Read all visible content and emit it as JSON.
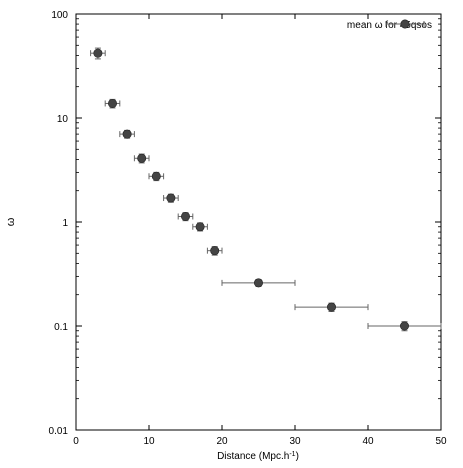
{
  "chart_data": {
    "type": "scatter",
    "title": "",
    "xlabel": "Distance (Mpc.h",
    "xlabel_sup": "-1",
    "xlabel_suffix": ")",
    "ylabel": "ω",
    "xlim": [
      0,
      50
    ],
    "ylim": [
      0.01,
      100
    ],
    "yscale": "log",
    "grid": false,
    "legend_position": "top-right",
    "x_ticks": [
      0,
      10,
      20,
      30,
      40,
      50
    ],
    "x_tick_labels": [
      "0",
      "10",
      "20",
      "30",
      "40",
      "50"
    ],
    "y_ticks": [
      0.01,
      0.1,
      1,
      10,
      100
    ],
    "y_tick_labels": [
      "0.01",
      "0.1",
      "1",
      "10",
      "100"
    ],
    "series": [
      {
        "name": "mean ω for 45qsos",
        "color": "#444444",
        "x": [
          3,
          5,
          7,
          9,
          11,
          13,
          15,
          17,
          19,
          25,
          35,
          45
        ],
        "y": [
          42,
          13.8,
          7.0,
          4.1,
          2.75,
          1.7,
          1.13,
          0.9,
          0.53,
          0.26,
          0.152,
          0.1
        ],
        "x_err": [
          1,
          1,
          1,
          1,
          1,
          1,
          1,
          1,
          1,
          5,
          5,
          5
        ],
        "y_err_low": [
          5,
          1.3,
          0.6,
          0.4,
          0.25,
          0.15,
          0.1,
          0.08,
          0.05,
          0.02,
          0.014,
          0.01
        ],
        "y_err_high": [
          5,
          1.3,
          0.6,
          0.4,
          0.25,
          0.15,
          0.1,
          0.08,
          0.05,
          0.02,
          0.014,
          0.01
        ]
      }
    ]
  }
}
